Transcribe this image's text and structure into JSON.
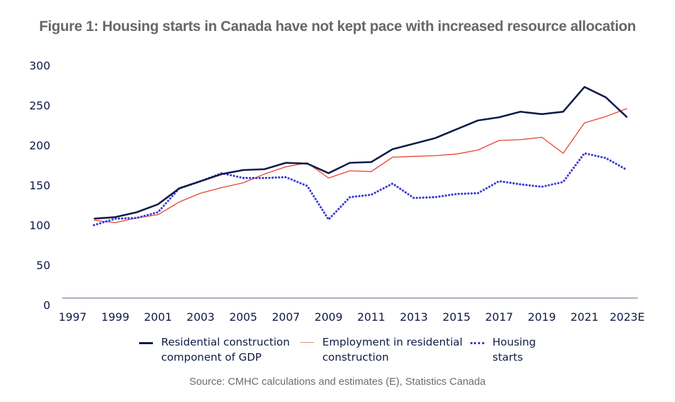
{
  "title": "Figure 1: Housing starts in Canada have not kept pace with increased resource allocation",
  "source": "Source: CMHC calculations and estimates (E), Statistics Canada",
  "chart_data": {
    "type": "line",
    "title": "Figure 1: Housing starts in Canada have not kept pace with increased resource allocation",
    "xlabel": "",
    "ylabel": "",
    "ylim": [
      0,
      300
    ],
    "yticks": [
      0,
      50,
      100,
      150,
      200,
      250,
      300
    ],
    "ytick_labels": [
      "0",
      "50",
      "100",
      "150",
      "200",
      "250",
      "300"
    ],
    "x": [
      1997,
      1998,
      1999,
      2000,
      2001,
      2002,
      2003,
      2004,
      2005,
      2006,
      2007,
      2008,
      2009,
      2010,
      2011,
      2012,
      2013,
      2014,
      2015,
      2016,
      2017,
      2018,
      2019,
      2020,
      2021,
      2022,
      2023
    ],
    "xtick_labels": [
      "1997",
      "1999",
      "2001",
      "2003",
      "2005",
      "2007",
      "2009",
      "2011",
      "2013",
      "2015",
      "2017",
      "2019",
      "2021",
      "2023E"
    ],
    "xtick_years": [
      1997,
      1999,
      2001,
      2003,
      2005,
      2007,
      2009,
      2011,
      2013,
      2015,
      2017,
      2019,
      2021,
      2023
    ],
    "grid": false,
    "legend_position": "bottom",
    "series": [
      {
        "name": "Residential construction\ncomponent of GDP",
        "style": "solid-thick",
        "color": "#0d1a48",
        "values": [
          null,
          108,
          110,
          116,
          126,
          146,
          155,
          164,
          169,
          170,
          178,
          177,
          165,
          178,
          179,
          195,
          202,
          209,
          220,
          231,
          235,
          242,
          239,
          242,
          273,
          260,
          235
        ]
      },
      {
        "name": "Employment in residential\nconstruction",
        "style": "solid-thin",
        "color": "#e8412f",
        "values": [
          null,
          106,
          103,
          109,
          113,
          129,
          140,
          147,
          153,
          164,
          173,
          178,
          159,
          168,
          167,
          185,
          186,
          187,
          189,
          194,
          206,
          207,
          210,
          190,
          228,
          236,
          246
        ]
      },
      {
        "name": "Housing\nstarts",
        "style": "dotted",
        "color": "#3a3ad6",
        "values": [
          null,
          100,
          108,
          109,
          116,
          146,
          155,
          165,
          159,
          159,
          160,
          149,
          107,
          135,
          138,
          152,
          134,
          135,
          139,
          140,
          155,
          151,
          148,
          154,
          190,
          184,
          169
        ]
      }
    ]
  }
}
